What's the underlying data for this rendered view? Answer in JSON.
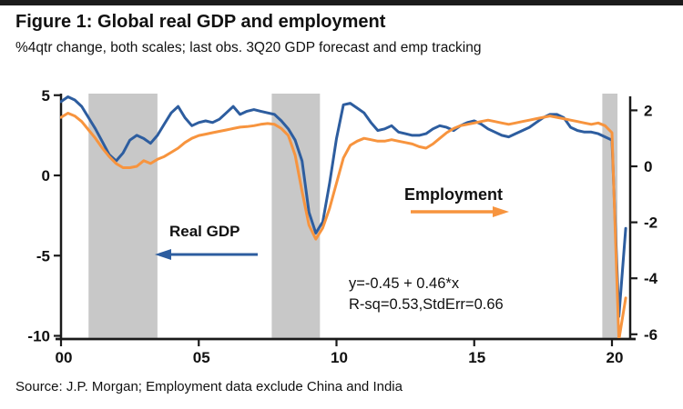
{
  "page": {
    "background": "#ffffff",
    "top_border_color": "#1c1c1c"
  },
  "header": {
    "title": "Figure 1: Global real GDP and employment",
    "subtitle": "%4qtr change, both scales; last obs. 3Q20 GDP forecast and emp tracking"
  },
  "source_note": "Source: J.P. Morgan; Employment data exclude China and India",
  "chart_data": {
    "type": "line",
    "title": "Figure 1: Global real GDP and employment",
    "subtitle": "%4qtr change, both scales; last obs. 3Q20 GDP forecast and emp tracking",
    "x_start": 2000,
    "x_step": 0.25,
    "series": [
      {
        "name": "Real GDP",
        "axis": "left",
        "color": "#2d5d9f",
        "values": [
          4.6,
          4.9,
          4.7,
          4.3,
          3.6,
          2.9,
          2.1,
          1.3,
          0.9,
          1.4,
          2.2,
          2.5,
          2.3,
          2.0,
          2.5,
          3.2,
          3.9,
          4.3,
          3.6,
          3.1,
          3.3,
          3.4,
          3.3,
          3.5,
          3.9,
          4.3,
          3.8,
          4.0,
          4.1,
          4.0,
          3.9,
          3.8,
          3.4,
          2.9,
          2.2,
          0.9,
          -2.3,
          -3.6,
          -2.9,
          -0.5,
          2.3,
          4.4,
          4.5,
          4.2,
          3.9,
          3.3,
          2.8,
          2.9,
          3.1,
          2.7,
          2.6,
          2.5,
          2.5,
          2.6,
          2.9,
          3.1,
          3.0,
          2.8,
          3.1,
          3.3,
          3.4,
          3.2,
          2.9,
          2.7,
          2.5,
          2.4,
          2.6,
          2.8,
          3.0,
          3.3,
          3.6,
          3.8,
          3.8,
          3.6,
          3.0,
          2.8,
          2.7,
          2.7,
          2.6,
          2.4,
          2.2,
          -8.8,
          -3.3
        ]
      },
      {
        "name": "Employment",
        "axis": "right",
        "color": "#f7943e",
        "values": [
          1.75,
          1.9,
          1.8,
          1.6,
          1.3,
          1.0,
          0.65,
          0.35,
          0.1,
          -0.05,
          -0.05,
          0.0,
          0.2,
          0.1,
          0.25,
          0.35,
          0.5,
          0.65,
          0.85,
          1.0,
          1.1,
          1.15,
          1.2,
          1.25,
          1.3,
          1.35,
          1.4,
          1.42,
          1.45,
          1.5,
          1.53,
          1.5,
          1.35,
          1.1,
          0.4,
          -0.9,
          -2.1,
          -2.6,
          -2.2,
          -1.5,
          -0.6,
          0.3,
          0.75,
          0.9,
          1.0,
          0.95,
          0.9,
          0.9,
          0.95,
          0.9,
          0.85,
          0.8,
          0.7,
          0.65,
          0.8,
          1.0,
          1.2,
          1.35,
          1.45,
          1.5,
          1.55,
          1.6,
          1.65,
          1.6,
          1.55,
          1.5,
          1.55,
          1.6,
          1.65,
          1.7,
          1.75,
          1.8,
          1.75,
          1.7,
          1.65,
          1.6,
          1.55,
          1.5,
          1.55,
          1.45,
          1.2,
          -6.2,
          -4.7
        ]
      }
    ],
    "left_axis": {
      "ticks": [
        5,
        0,
        -5,
        -10
      ],
      "range": [
        -10.2,
        5.0
      ]
    },
    "right_axis": {
      "ticks": [
        2,
        0,
        -2,
        -4,
        -6
      ],
      "range": [
        -6.2,
        2.6
      ]
    },
    "x_axis": {
      "ticks": [
        2000,
        2005,
        2010,
        2015,
        2020
      ],
      "tick_labels": [
        "00",
        "05",
        "10",
        "15",
        "20"
      ],
      "range": [
        2000,
        2020.66
      ]
    },
    "recession_bands": [
      [
        2001.0,
        2003.5
      ],
      [
        2007.65,
        2009.4
      ],
      [
        2019.65,
        2020.2
      ]
    ],
    "band_color": "#c8c8c8",
    "axis_color": "#1a1a1a",
    "grid": false,
    "annotations": {
      "gdp_label": "Real GDP",
      "emp_label": "Employment",
      "regression_line1": "y=-0.45 + 0.46*x",
      "regression_line2": "R-sq=0.53,StdErr=0.66"
    }
  }
}
